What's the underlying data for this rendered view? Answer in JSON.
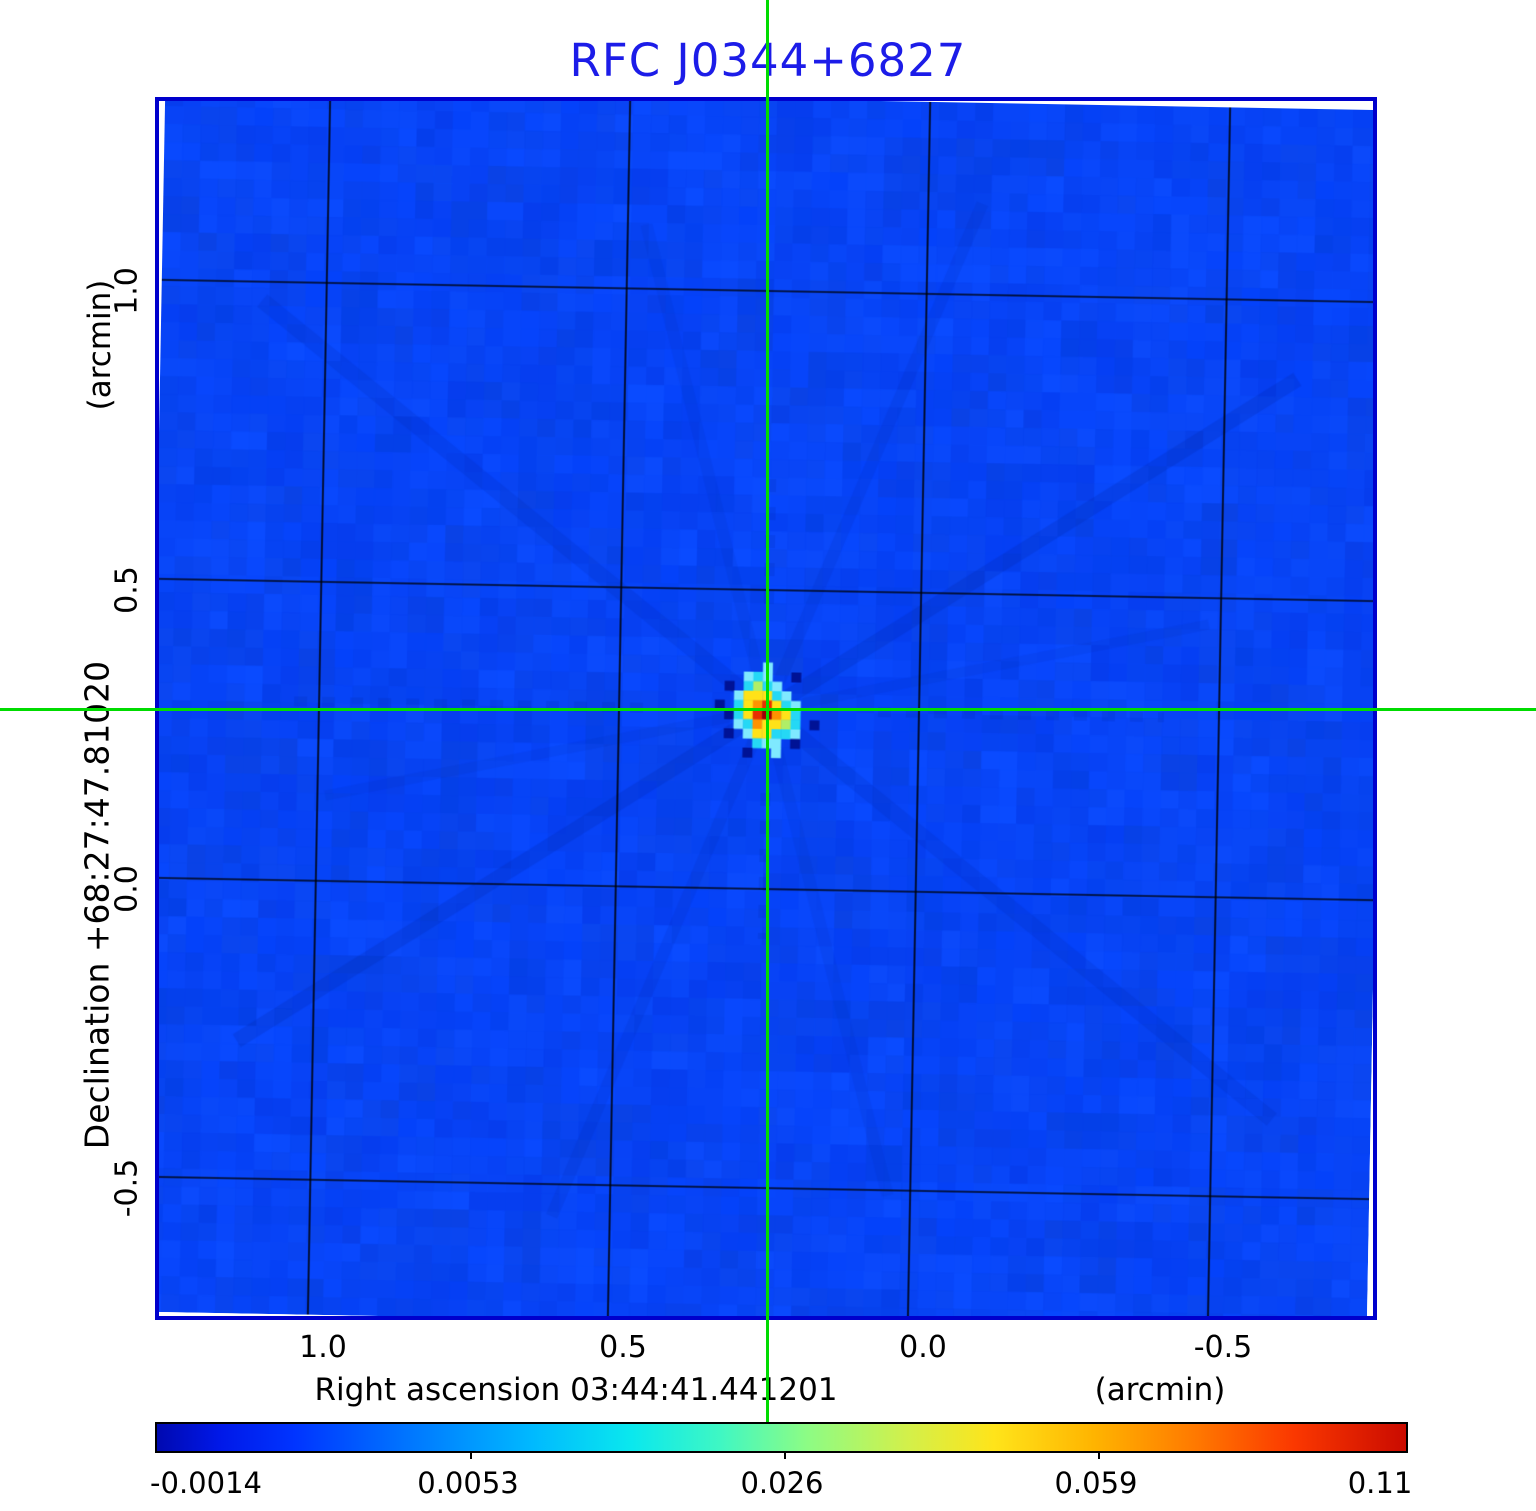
{
  "title": {
    "text": "RFC J0344+6827"
  },
  "colors": {
    "title-blue": "#1c1ce8",
    "frame-blue": "#0000cc",
    "crosshair-green": "#00dc00",
    "grid-black": "#000000"
  },
  "axes": {
    "x": {
      "label": "Right ascension  03:44:41.441201",
      "unit": "(arcmin)",
      "ticks": [
        "1.0",
        "0.5",
        "0.0",
        "-0.5"
      ]
    },
    "y": {
      "label": "Declination  +68:27:47.81020",
      "unit": "(arcmin)",
      "ticks": [
        "1.0",
        "0.5",
        "0.0",
        "-0.5"
      ]
    }
  },
  "colorbar": {
    "tick_labels": [
      "-0.0014",
      "0.0053",
      "0.026",
      "0.059",
      "0.11"
    ],
    "stops": [
      [
        0.0,
        "#0009b0"
      ],
      [
        0.05,
        "#0018e8"
      ],
      [
        0.11,
        "#0034ff"
      ],
      [
        0.2,
        "#0075ff"
      ],
      [
        0.3,
        "#00b9ff"
      ],
      [
        0.38,
        "#0ae8ee"
      ],
      [
        0.45,
        "#3ef7c4"
      ],
      [
        0.52,
        "#8cfc85"
      ],
      [
        0.6,
        "#d2f04b"
      ],
      [
        0.67,
        "#ffe41a"
      ],
      [
        0.75,
        "#ffb400"
      ],
      [
        0.83,
        "#ff7a00"
      ],
      [
        0.91,
        "#fb3800"
      ],
      [
        1.0,
        "#ca0b00"
      ]
    ]
  },
  "chart_data": {
    "type": "heatmap",
    "title": "RFC J0344+6827",
    "xlabel": "Right ascension  03:44:41.441201 (arcmin)",
    "ylabel": "Declination  +68:27:47.81020 (arcmin)",
    "x_ticks_arcmin": [
      1.0,
      0.5,
      0.0,
      -0.5
    ],
    "y_ticks_arcmin": [
      1.0,
      0.5,
      0.0,
      -0.5
    ],
    "x_range_arcmin": [
      1.27,
      -0.76
    ],
    "y_range_arcmin": [
      -0.72,
      1.32
    ],
    "intensity_scale_ticks": [
      -0.0014,
      0.0053,
      0.026,
      0.059,
      0.11
    ],
    "intensity_min": -0.0014,
    "intensity_peak": 0.11,
    "colormap": "jet",
    "grid": true,
    "source_marker_arcmin": {
      "x": 0.25,
      "y": 0.3
    },
    "raster": {
      "base_color": "#0742f4",
      "noise_palette": [
        "#0640f2",
        "#0846fc",
        "#0a4bff",
        "#0540e8",
        "#0945f5",
        "#063dee",
        "#0b49fa",
        "#0443fa",
        "#0a43e6"
      ],
      "streak_color": "#01249f",
      "streaks": [
        {
          "angle": -33,
          "len": 1250,
          "w": 15,
          "alpha": 0.2
        },
        {
          "angle": 38,
          "len": 1300,
          "w": 16,
          "alpha": 0.15
        },
        {
          "angle": -68,
          "len": 1100,
          "w": 12,
          "alpha": 0.12
        },
        {
          "angle": 75,
          "len": 1000,
          "w": 12,
          "alpha": 0.1
        },
        {
          "angle": -12,
          "len": 900,
          "w": 10,
          "alpha": 0.1
        }
      ],
      "ripples": [
        {
          "axis": "h",
          "from": 140,
          "to": 500
        },
        {
          "axis": "h",
          "from": 724,
          "to": 1010
        },
        {
          "axis": "v",
          "from": 380,
          "to": 520
        },
        {
          "axis": "v",
          "from": 694,
          "to": 840
        }
      ],
      "source_palette": {
        "V": "#9c0000",
        "R": "#e83000",
        "O": "#ff9300",
        "Y": "#ffe218",
        "G": "#b0ee66",
        "C": "#25d8f5",
        "c": "#7fe9ff",
        "L": "#49a9ff",
        "K": "#001295",
        "D": "#0030cf"
      },
      "source_matrix": [
        "......c......",
        "....cCc..K...",
        "..K.CGCc.....",
        "...cYYYCc....",
        ".K.CYORYCc...",
        "..KCYRVOYC...",
        "...cCOYYGC.K.",
        "..K.cYYCCc...",
        ".....Ccc.K...",
        "....K..c....."
      ]
    }
  }
}
